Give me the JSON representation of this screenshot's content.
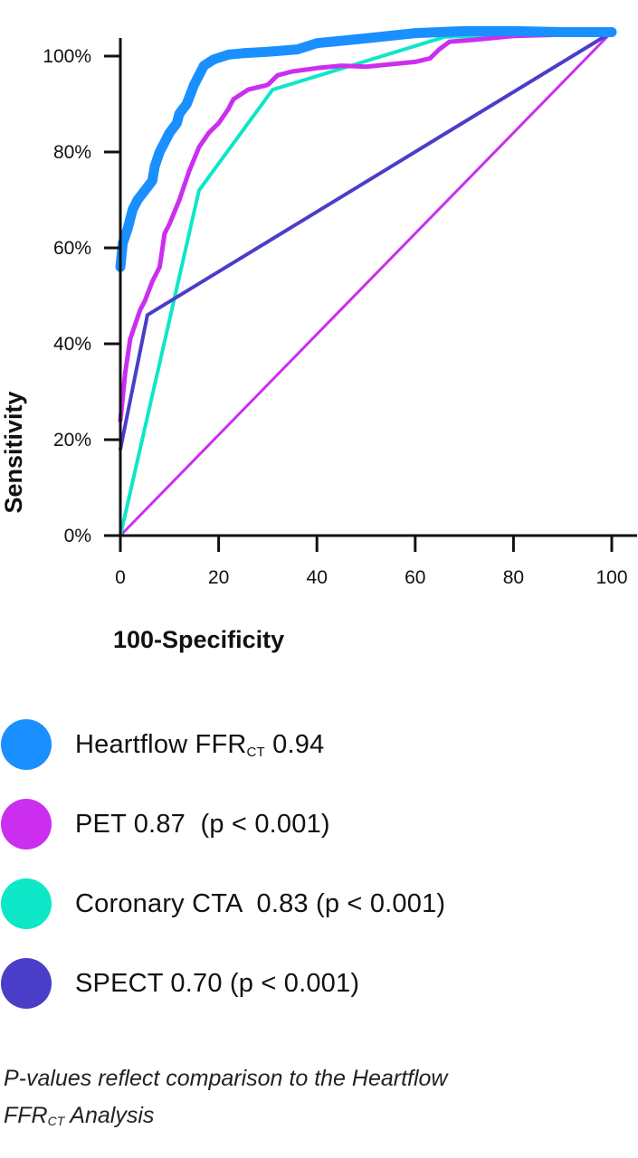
{
  "chart_data": {
    "type": "line",
    "title": "",
    "xlabel": "100-Specificity",
    "ylabel": "Sensitivity",
    "xlim": [
      0,
      105
    ],
    "ylim": [
      0,
      105
    ],
    "x_ticks": [
      0,
      20,
      40,
      60,
      80,
      100
    ],
    "x_tick_labels": [
      "0",
      "20",
      "40",
      "60",
      "80",
      "100"
    ],
    "y_ticks": [
      0,
      20,
      40,
      60,
      80,
      100
    ],
    "y_tick_labels": [
      "0%",
      "20%",
      "40%",
      "60%",
      "80%",
      "100%"
    ],
    "grid": false,
    "legend_position": "bottom",
    "series": [
      {
        "name": "Heartflow FFR CT 0.94",
        "color": "#1a8fff",
        "x": [
          0,
          0.5,
          1.5,
          2.5,
          3.5,
          5,
          6.5,
          7,
          8,
          10,
          11.5,
          12,
          13.5,
          15,
          16,
          17,
          19,
          22,
          25,
          30,
          36,
          40,
          44,
          50,
          60,
          70,
          80,
          90,
          100
        ],
        "y": [
          56,
          61,
          64,
          68,
          70,
          72,
          74,
          77,
          80,
          84,
          86,
          88,
          90,
          94,
          96,
          98,
          99.3,
          100.3,
          100.6,
          100.9,
          101.4,
          102.7,
          103.1,
          103.7,
          104.8,
          105.2,
          105.2,
          105,
          105
        ]
      },
      {
        "name": "PET 0.87",
        "color": "#cc2ef0",
        "x": [
          0,
          1,
          2,
          3,
          4,
          5,
          6.5,
          8,
          9,
          10,
          12,
          14,
          16,
          18,
          20,
          22,
          23,
          26,
          30,
          32,
          35,
          40,
          45,
          50,
          55,
          60,
          63,
          65,
          67,
          72,
          80,
          90,
          100
        ],
        "y": [
          24,
          34,
          41,
          44,
          47,
          49,
          53,
          56,
          63,
          65,
          70,
          76,
          81,
          84,
          86,
          89,
          91,
          93,
          94,
          96,
          96.8,
          97.5,
          98,
          97.8,
          98.3,
          98.8,
          99.5,
          101.5,
          103,
          103.4,
          104.2,
          104.5,
          105
        ]
      },
      {
        "name": "Coronary CTA 0.83",
        "color": "#0de7c8",
        "x": [
          0,
          16,
          31,
          66,
          100
        ],
        "y": [
          0,
          72,
          93,
          104,
          105
        ]
      },
      {
        "name": "SPECT 0.70",
        "color": "#4a3ec8",
        "x": [
          0,
          5.5,
          100
        ],
        "y": [
          18,
          46,
          105
        ]
      },
      {
        "name": "",
        "color": "#cc2ef0",
        "x": [
          0,
          100
        ],
        "y": [
          0,
          105
        ]
      }
    ]
  },
  "legend": {
    "items": [
      {
        "label": "Heartflow FFR",
        "sub": "CT",
        "value": " 0.94",
        "color": "#1a8fff"
      },
      {
        "label": "PET 0.87  (p < 0.001)",
        "sub": "",
        "value": "",
        "color": "#cc2ef0"
      },
      {
        "label": "Coronary CTA  0.83 (p < 0.001)",
        "sub": "",
        "value": "",
        "color": "#0de7c8"
      },
      {
        "label": "SPECT 0.70 (p < 0.001)",
        "sub": "",
        "value": "",
        "color": "#4a3ec8"
      }
    ]
  },
  "footnote": {
    "line1": "P-values reflect comparison to the Heartflow",
    "line2_prefix": "FFR",
    "line2_sub": "CT",
    "line2_suffix": " Analysis"
  }
}
